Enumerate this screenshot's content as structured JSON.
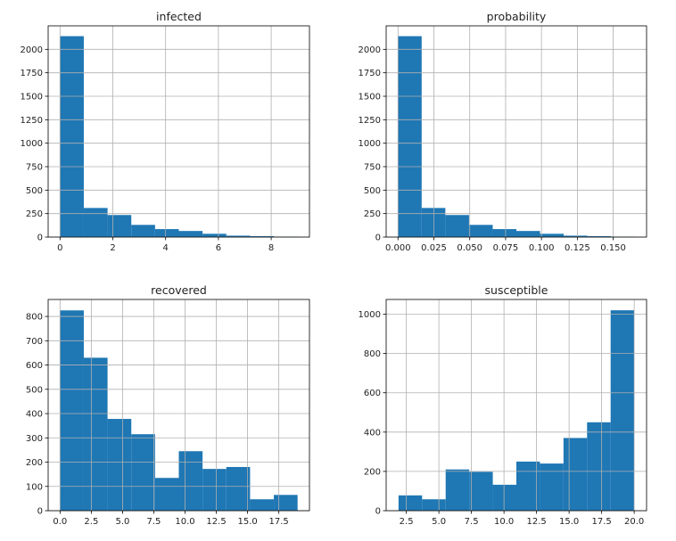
{
  "chart_data": [
    {
      "type": "histogram",
      "title": "infected",
      "xlim": [
        -0.45,
        9.45
      ],
      "ylim": [
        0,
        2250
      ],
      "bin_edges": [
        0,
        0.9,
        1.8,
        2.7,
        3.6,
        4.5,
        5.4,
        6.3,
        7.2,
        8.1,
        9.0
      ],
      "values": [
        2140,
        310,
        235,
        130,
        85,
        65,
        35,
        15,
        10,
        5
      ],
      "xticks": [
        0,
        2,
        4,
        6,
        8
      ],
      "xticklabels": [
        "0",
        "2",
        "4",
        "6",
        "8"
      ],
      "yticks": [
        0,
        250,
        500,
        750,
        1000,
        1250,
        1500,
        1750,
        2000
      ],
      "yticklabels": [
        "0",
        "250",
        "500",
        "750",
        "1000",
        "1250",
        "1500",
        "1750",
        "2000"
      ],
      "grid": true,
      "color": "#1f77b4"
    },
    {
      "type": "histogram",
      "title": "probability",
      "xlim": [
        -0.00825,
        0.17325
      ],
      "ylim": [
        0,
        2250
      ],
      "bin_edges": [
        0,
        0.0165,
        0.033,
        0.0495,
        0.066,
        0.0825,
        0.099,
        0.1155,
        0.132,
        0.1485,
        0.165
      ],
      "values": [
        2140,
        310,
        235,
        130,
        85,
        65,
        35,
        15,
        10,
        5
      ],
      "xticks": [
        0,
        0.025,
        0.05,
        0.075,
        0.1,
        0.125,
        0.15
      ],
      "xticklabels": [
        "0.000",
        "0.025",
        "0.050",
        "0.075",
        "0.100",
        "0.125",
        "0.150"
      ],
      "yticks": [
        0,
        250,
        500,
        750,
        1000,
        1250,
        1500,
        1750,
        2000
      ],
      "yticklabels": [
        "0",
        "250",
        "500",
        "750",
        "1000",
        "1250",
        "1500",
        "1750",
        "2000"
      ],
      "grid": true,
      "color": "#1f77b4"
    },
    {
      "type": "histogram",
      "title": "recovered",
      "xlim": [
        -0.95,
        19.95
      ],
      "ylim": [
        0,
        870
      ],
      "bin_edges": [
        0,
        1.9,
        3.8,
        5.7,
        7.6,
        9.5,
        11.4,
        13.3,
        15.2,
        17.1,
        19.0
      ],
      "values": [
        825,
        630,
        378,
        315,
        135,
        245,
        172,
        180,
        47,
        65
      ],
      "xticks": [
        0,
        2.5,
        5,
        7.5,
        10,
        12.5,
        15,
        17.5
      ],
      "xticklabels": [
        "0.0",
        "2.5",
        "5.0",
        "7.5",
        "10.0",
        "12.5",
        "15.0",
        "17.5"
      ],
      "yticks": [
        0,
        100,
        200,
        300,
        400,
        500,
        600,
        700,
        800
      ],
      "yticklabels": [
        "0",
        "100",
        "200",
        "300",
        "400",
        "500",
        "600",
        "700",
        "800"
      ],
      "grid": true,
      "color": "#1f77b4"
    },
    {
      "type": "histogram",
      "title": "susceptible",
      "xlim": [
        0.95,
        20.95
      ],
      "ylim": [
        0,
        1075
      ],
      "bin_edges": [
        1.9,
        3.71,
        5.52,
        7.33,
        9.14,
        10.95,
        12.76,
        14.57,
        16.38,
        18.19,
        20.0
      ],
      "values": [
        78,
        58,
        210,
        198,
        132,
        250,
        240,
        370,
        450,
        1020
      ],
      "xticks": [
        2.5,
        5,
        7.5,
        10,
        12.5,
        15,
        17.5,
        20
      ],
      "xticklabels": [
        "2.5",
        "5.0",
        "7.5",
        "10.0",
        "12.5",
        "15.0",
        "17.5",
        "20.0"
      ],
      "yticks": [
        0,
        200,
        400,
        600,
        800,
        1000
      ],
      "yticklabels": [
        "0",
        "200",
        "400",
        "600",
        "800",
        "1000"
      ],
      "grid": true,
      "color": "#1f77b4"
    }
  ]
}
